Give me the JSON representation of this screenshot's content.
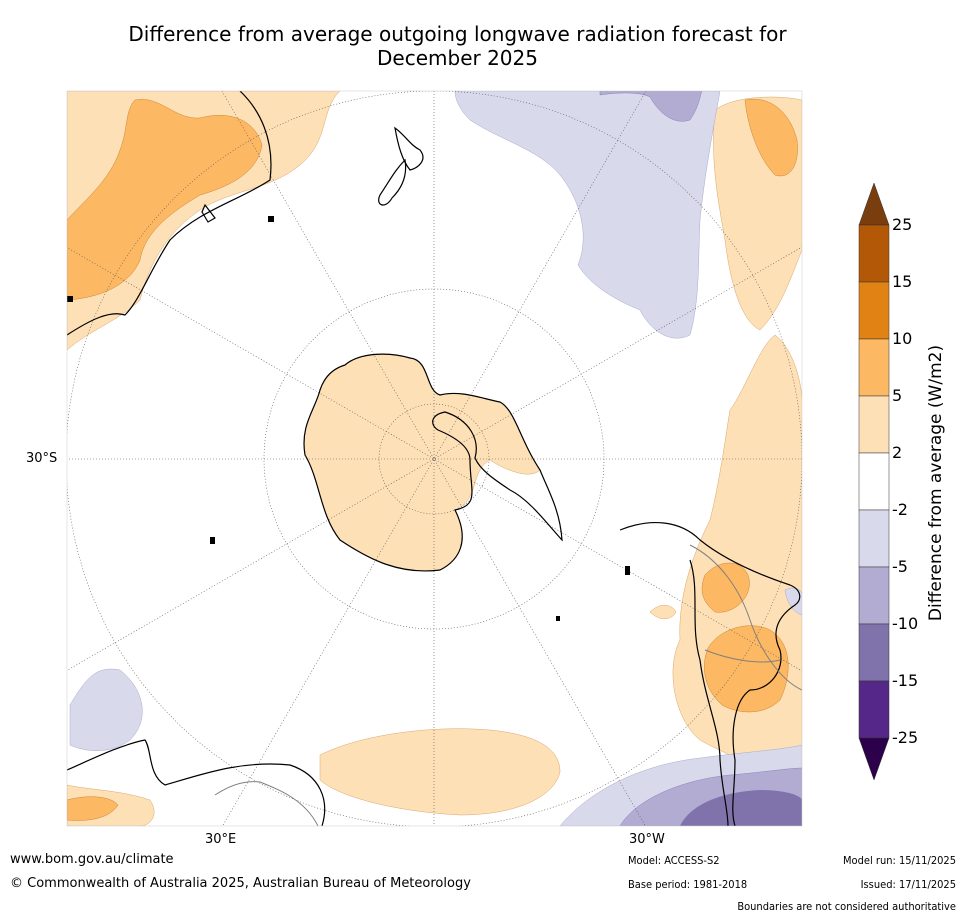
{
  "title_line1": "Difference from average outgoing longwave radiation forecast for",
  "title_line2": "December 2025",
  "map": {
    "projection": "south-polar-stereographic",
    "lat_label": "30°S",
    "lon_labels": [
      "30°E",
      "30°W"
    ],
    "gridline_color": "#666666",
    "coast_color": "#000000",
    "border_color": "#7f7f7f"
  },
  "colorbar": {
    "title": "Difference from average (W/m2)",
    "ticks": [
      "25",
      "15",
      "10",
      "5",
      "2",
      "-2",
      "-5",
      "-10",
      "-15",
      "-25"
    ],
    "colors": [
      "#7a3d0d",
      "#b35806",
      "#e08214",
      "#fdb863",
      "#fee0b6",
      "#ffffff",
      "#d8daeb",
      "#b2abd2",
      "#8073ac",
      "#542788",
      "#2d004b"
    ]
  },
  "footer": {
    "url": "www.bom.gov.au/climate",
    "copyright": "© Commonwealth of Australia 2025, Australian Bureau of Meteorology",
    "model": "Model: ACCESS-S2",
    "base_period": "Base period: 1981-2018",
    "model_run": "Model run: 15/11/2025",
    "issued": "Issued: 17/11/2025",
    "disclaimer": "Boundaries are not considered authoritative"
  }
}
